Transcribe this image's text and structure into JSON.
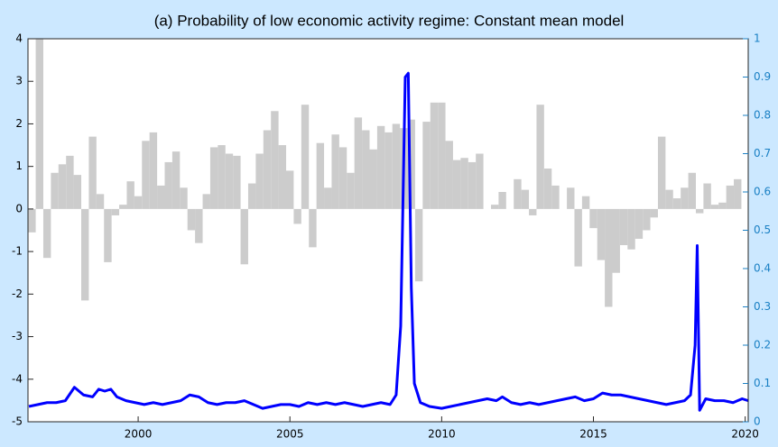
{
  "chart_data": {
    "type": "bar_line",
    "title": "(a) Probability of low economic activity regime: Constant mean model",
    "xlim": [
      1996.37,
      2020.1
    ],
    "xticks": [
      2000,
      2005,
      2010,
      2015,
      2020
    ],
    "ylim": [
      -5,
      4
    ],
    "yticks": [
      -5,
      -4,
      -3,
      -2,
      -1,
      0,
      1,
      2,
      3,
      4
    ],
    "y2lim": [
      0,
      1
    ],
    "y2ticks": [
      0,
      0.1,
      0.2,
      0.3,
      0.4,
      0.5,
      0.6,
      0.7,
      0.8,
      0.9,
      1
    ],
    "bar_width": 0.25,
    "series": [
      {
        "type": "bar",
        "color": "#cccccc",
        "x": [
          1996.5,
          1996.75,
          1997,
          1997.25,
          1997.5,
          1997.75,
          1998,
          1998.25,
          1998.5,
          1998.75,
          1999,
          1999.25,
          1999.5,
          1999.75,
          2000,
          2000.25,
          2000.5,
          2000.75,
          2001,
          2001.25,
          2001.5,
          2001.75,
          2002,
          2002.25,
          2002.5,
          2002.75,
          2003,
          2003.25,
          2003.5,
          2003.75,
          2004,
          2004.25,
          2004.5,
          2004.75,
          2005,
          2005.25,
          2005.5,
          2005.75,
          2006,
          2006.25,
          2006.5,
          2006.75,
          2007,
          2007.25,
          2007.5,
          2007.75,
          2008,
          2008.25,
          2008.5,
          2008.75,
          2009,
          2009.25,
          2009.5,
          2009.75,
          2010,
          2010.25,
          2010.5,
          2010.75,
          2011,
          2011.25,
          2011.5,
          2011.75,
          2012,
          2012.25,
          2012.5,
          2012.75,
          2013,
          2013.25,
          2013.5,
          2013.75,
          2014,
          2014.25,
          2014.5,
          2014.75,
          2015,
          2015.25,
          2015.5,
          2015.75,
          2016,
          2016.25,
          2016.5,
          2016.75,
          2017,
          2017.25,
          2017.5,
          2017.75,
          2018,
          2018.25,
          2018.5,
          2018.75,
          2019,
          2019.25,
          2019.5,
          2019.75
        ],
        "values": [
          -0.55,
          4,
          -1.15,
          0.85,
          1.05,
          1.25,
          0.8,
          -2.15,
          1.7,
          0.35,
          -1.25,
          -0.15,
          0.1,
          0.65,
          0.3,
          1.6,
          1.8,
          0.55,
          1.1,
          1.35,
          0.5,
          -0.5,
          -0.8,
          0.35,
          1.45,
          1.5,
          1.3,
          1.25,
          -1.3,
          0.6,
          1.3,
          1.85,
          2.3,
          1.5,
          0.9,
          -0.35,
          2.45,
          -0.9,
          1.55,
          0.5,
          1.75,
          1.45,
          0.85,
          2.15,
          1.85,
          1.4,
          1.95,
          1.8,
          2.0,
          1.9,
          2.1,
          -1.7,
          2.05,
          2.5,
          2.5,
          1.6,
          1.15,
          1.2,
          1.1,
          1.3,
          0,
          0.1,
          0.4,
          0,
          0.7,
          0.45,
          -0.15,
          2.45,
          0.95,
          0.55,
          0,
          0.5,
          -1.35,
          0.3,
          -0.45,
          -1.2,
          -2.3,
          -1.5,
          -0.85,
          -0.95,
          -0.7,
          -0.5,
          -0.2,
          1.7,
          0.45,
          0.25,
          0.5,
          0.85,
          -0.1,
          0.6,
          0.1,
          0.15,
          0.55,
          0.7
        ]
      },
      {
        "type": "line",
        "axis": "y2",
        "color": "#0000ff",
        "x": [
          1996.4,
          1996.7,
          1997.0,
          1997.3,
          1997.6,
          1997.9,
          1998.2,
          1998.5,
          1998.7,
          1998.9,
          1999.1,
          1999.3,
          1999.6,
          1999.9,
          2000.2,
          2000.5,
          2000.8,
          2001.1,
          2001.4,
          2001.7,
          2002.0,
          2002.3,
          2002.6,
          2002.9,
          2003.2,
          2003.5,
          2003.8,
          2004.1,
          2004.4,
          2004.7,
          2005.0,
          2005.3,
          2005.6,
          2005.9,
          2006.2,
          2006.5,
          2006.8,
          2007.1,
          2007.4,
          2007.7,
          2008.0,
          2008.3,
          2008.5,
          2008.65,
          2008.8,
          2008.9,
          2009.0,
          2009.1,
          2009.3,
          2009.6,
          2010.0,
          2010.3,
          2010.6,
          2010.9,
          2011.2,
          2011.5,
          2011.8,
          2012.0,
          2012.3,
          2012.6,
          2012.9,
          2013.2,
          2013.5,
          2013.8,
          2014.1,
          2014.4,
          2014.7,
          2015.0,
          2015.3,
          2015.6,
          2015.9,
          2016.2,
          2016.5,
          2016.8,
          2017.1,
          2017.4,
          2017.7,
          2018.0,
          2018.2,
          2018.35,
          2018.42,
          2018.5,
          2018.7,
          2019.0,
          2019.3,
          2019.6,
          2019.9,
          2020.1
        ],
        "values": [
          0.04,
          0.045,
          0.05,
          0.05,
          0.055,
          0.09,
          0.07,
          0.065,
          0.085,
          0.08,
          0.085,
          0.065,
          0.055,
          0.05,
          0.045,
          0.05,
          0.045,
          0.05,
          0.055,
          0.07,
          0.065,
          0.05,
          0.045,
          0.05,
          0.05,
          0.055,
          0.045,
          0.035,
          0.04,
          0.045,
          0.045,
          0.04,
          0.05,
          0.045,
          0.05,
          0.045,
          0.05,
          0.045,
          0.04,
          0.045,
          0.05,
          0.045,
          0.07,
          0.25,
          0.9,
          0.91,
          0.35,
          0.1,
          0.05,
          0.04,
          0.035,
          0.04,
          0.045,
          0.05,
          0.055,
          0.06,
          0.055,
          0.065,
          0.05,
          0.045,
          0.05,
          0.045,
          0.05,
          0.055,
          0.06,
          0.065,
          0.055,
          0.06,
          0.075,
          0.07,
          0.07,
          0.065,
          0.06,
          0.055,
          0.05,
          0.045,
          0.05,
          0.055,
          0.07,
          0.2,
          0.46,
          0.03,
          0.06,
          0.055,
          0.055,
          0.05,
          0.06,
          0.055
        ]
      }
    ]
  }
}
